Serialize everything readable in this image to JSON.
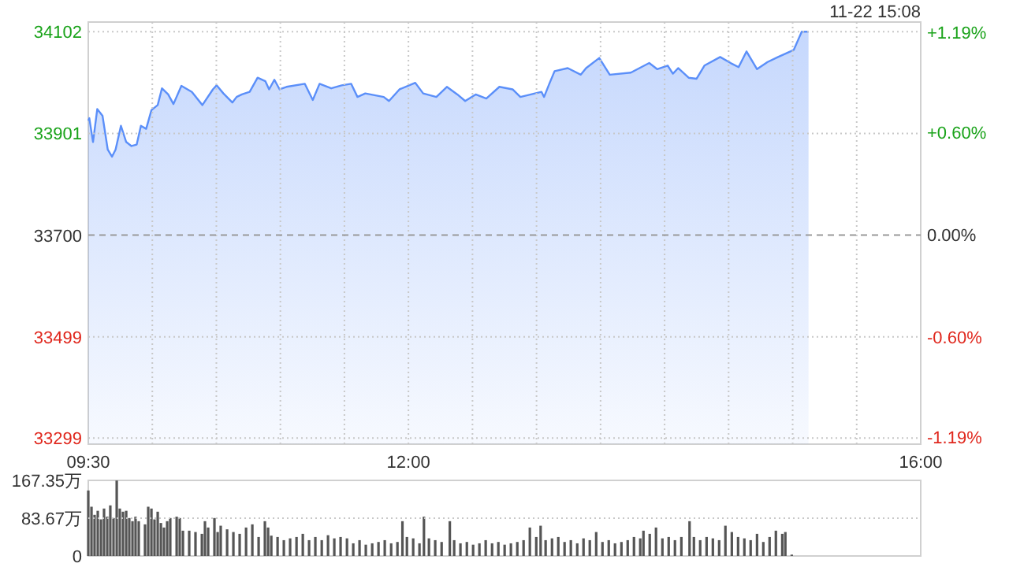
{
  "chart_data": [
    {
      "type": "area",
      "annotations": [
        "11-22 15:08"
      ],
      "grid": true,
      "xlim": [
        9.5,
        16
      ],
      "xticks": [
        {
          "value": 9.5,
          "label": "09:30"
        },
        {
          "value": 10,
          "label": null
        },
        {
          "value": 10.5,
          "label": null
        },
        {
          "value": 11,
          "label": null
        },
        {
          "value": 11.5,
          "label": null
        },
        {
          "value": 12,
          "label": "12:00"
        },
        {
          "value": 12.5,
          "label": null
        },
        {
          "value": 13,
          "label": null
        },
        {
          "value": 13.5,
          "label": null
        },
        {
          "value": 14,
          "label": null
        },
        {
          "value": 14.5,
          "label": null
        },
        {
          "value": 15,
          "label": null
        },
        {
          "value": 15.5,
          "label": null
        },
        {
          "value": 16,
          "label": "16:00"
        }
      ],
      "ylim": [
        33287,
        34121
      ],
      "yticks": [
        33299,
        33499,
        33700,
        33901,
        34102
      ],
      "y2lim": [
        -1.23,
        1.25
      ],
      "y2ticks": [
        {
          "value": -1.19,
          "label": "-1.19%"
        },
        {
          "value": -0.6,
          "label": "-0.60%"
        },
        {
          "value": 0,
          "label": "0.00%"
        },
        {
          "value": 0.6,
          "label": "+0.60%"
        },
        {
          "value": 1.19,
          "label": "+1.19%"
        }
      ],
      "ref_lines": [
        {
          "axis": "y",
          "value": 33700,
          "line_style": "dashed",
          "color": "#999999"
        }
      ],
      "series": [
        {
          "color": "#5b8ff9",
          "x": [
            9.5,
            9.508,
            9.537,
            9.57,
            9.611,
            9.652,
            9.685,
            9.713,
            9.755,
            9.796,
            9.837,
            9.878,
            9.911,
            9.952,
            9.993,
            10.042,
            10.075,
            10.124,
            10.165,
            10.227,
            10.309,
            10.391,
            10.473,
            10.502,
            10.555,
            10.625,
            10.658,
            10.699,
            10.76,
            10.822,
            10.883,
            10.912,
            10.953,
            10.994,
            11.048,
            11.191,
            11.253,
            11.306,
            11.397,
            11.479,
            11.553,
            11.602,
            11.663,
            11.807,
            11.848,
            11.93,
            12.053,
            12.115,
            12.218,
            12.3,
            12.382,
            12.443,
            12.525,
            12.608,
            12.71,
            12.813,
            12.874,
            12.956,
            13.039,
            13.059,
            13.1,
            13.141,
            13.244,
            13.346,
            13.387,
            13.49,
            13.572,
            13.736,
            13.88,
            13.942,
            14.024,
            14.065,
            14.106,
            14.188,
            14.25,
            14.311,
            14.434,
            14.516,
            14.578,
            14.64,
            14.722,
            14.804,
            14.886,
            15.009,
            15.071,
            15.124
          ],
          "values": [
            33926,
            33931,
            33884,
            33949,
            33936,
            33869,
            33855,
            33869,
            33916,
            33884,
            33876,
            33879,
            33916,
            33910,
            33947,
            33957,
            33990,
            33978,
            33959,
            33995,
            33983,
            33957,
            33988,
            33996,
            33980,
            33962,
            33973,
            33978,
            33983,
            34011,
            34004,
            33988,
            34007,
            33988,
            33993,
            33999,
            33967,
            33999,
            33990,
            33996,
            33999,
            33973,
            33980,
            33973,
            33965,
            33988,
            34001,
            33980,
            33973,
            33993,
            33978,
            33965,
            33978,
            33970,
            33993,
            33988,
            33973,
            33978,
            33983,
            33973,
            33999,
            34024,
            34030,
            34017,
            34030,
            34050,
            34017,
            34021,
            34040,
            34028,
            34035,
            34019,
            34030,
            34011,
            34009,
            34035,
            34052,
            34040,
            34032,
            34063,
            34028,
            34042,
            34052,
            34066,
            34102,
            34102
          ]
        }
      ]
    },
    {
      "type": "bar",
      "grid": "y",
      "tick_labels": "y",
      "xlim": [
        9.5,
        16
      ],
      "ylim": [
        0,
        167.35
      ],
      "yticks": [
        0,
        {
          "value": 83.67,
          "label": "83.67万"
        },
        {
          "value": 167.35,
          "label": "167.35万"
        }
      ],
      "series": [
        {
          "color": "#555555",
          "x": [
            9.5,
            9.525,
            9.549,
            9.574,
            9.599,
            9.623,
            9.648,
            9.672,
            9.697,
            9.722,
            9.746,
            9.771,
            9.796,
            9.82,
            9.845,
            9.869,
            9.894,
            9.943,
            9.968,
            9.993,
            10.017,
            10.042,
            10.067,
            10.091,
            10.116,
            10.14,
            10.19,
            10.214,
            10.239,
            10.288,
            10.337,
            10.387,
            10.411,
            10.436,
            10.485,
            10.51,
            10.534,
            10.584,
            10.633,
            10.682,
            10.732,
            10.781,
            10.83,
            10.879,
            10.904,
            10.929,
            10.978,
            11.027,
            11.076,
            11.126,
            11.175,
            11.224,
            11.273,
            11.323,
            11.372,
            11.421,
            11.47,
            11.52,
            11.569,
            11.618,
            11.667,
            11.717,
            11.766,
            11.815,
            11.865,
            11.914,
            11.953,
            11.988,
            12.037,
            12.086,
            12.121,
            12.16,
            12.209,
            12.259,
            12.323,
            12.357,
            12.406,
            12.456,
            12.505,
            12.554,
            12.603,
            12.653,
            12.702,
            12.751,
            12.8,
            12.85,
            12.899,
            12.948,
            12.998,
            13.032,
            13.071,
            13.121,
            13.17,
            13.219,
            13.268,
            13.318,
            13.367,
            13.416,
            13.466,
            13.515,
            13.564,
            13.613,
            13.663,
            13.712,
            13.761,
            13.81,
            13.835,
            13.884,
            13.933,
            13.983,
            14.032,
            14.081,
            14.131,
            14.195,
            14.229,
            14.278,
            14.328,
            14.377,
            14.426,
            14.475,
            14.525,
            14.574,
            14.623,
            14.672,
            14.722,
            14.771,
            14.82,
            14.869,
            14.919,
            14.943,
            14.993
          ],
          "values": [
            145,
            109,
            91,
            100,
            81,
            105,
            87,
            112,
            84,
            167,
            105,
            98,
            100,
            84,
            77,
            87,
            77,
            70,
            109,
            105,
            81,
            98,
            73,
            63,
            77,
            84,
            87,
            84,
            56,
            56,
            53,
            49,
            77,
            63,
            84,
            53,
            67,
            59,
            53,
            49,
            63,
            70,
            42,
            77,
            63,
            45,
            42,
            35,
            39,
            42,
            49,
            35,
            42,
            35,
            46,
            39,
            42,
            39,
            28,
            35,
            25,
            28,
            31,
            35,
            28,
            31,
            77,
            42,
            39,
            28,
            87,
            39,
            35,
            31,
            77,
            35,
            28,
            31,
            25,
            28,
            35,
            28,
            31,
            25,
            28,
            31,
            35,
            63,
            42,
            67,
            35,
            39,
            42,
            31,
            35,
            28,
            39,
            35,
            53,
            31,
            35,
            28,
            31,
            35,
            42,
            39,
            56,
            49,
            63,
            39,
            42,
            35,
            42,
            77,
            42,
            35,
            42,
            39,
            35,
            67,
            53,
            42,
            39,
            35,
            49,
            31,
            42,
            56,
            49,
            53,
            3
          ]
        }
      ]
    }
  ]
}
